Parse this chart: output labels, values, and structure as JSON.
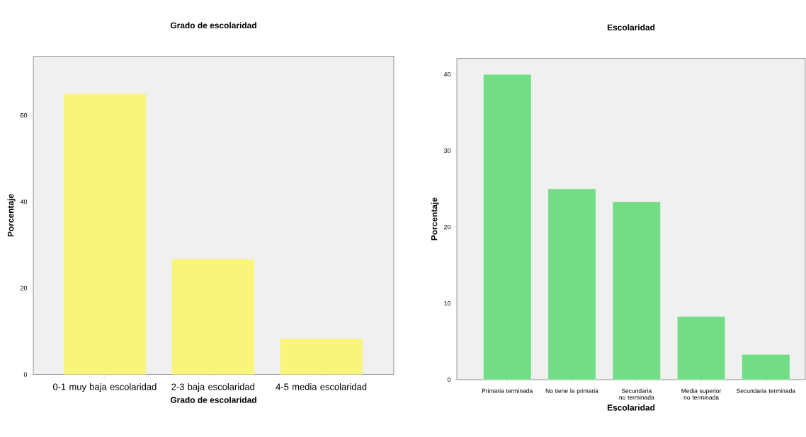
{
  "chart_data": [
    {
      "type": "bar",
      "title": "Grado de escolaridad",
      "xlabel": "Grado de escolaridad",
      "ylabel": "Porcentaje",
      "categories": [
        "0-1 muy baja escolaridad",
        "2-3 baja escolaridad",
        "4-5 media escolaridad"
      ],
      "values": [
        65.0,
        26.7,
        8.3
      ],
      "color": "#f8f57a",
      "ylim": [
        0,
        73.7
      ],
      "yticks": [
        0,
        20,
        40,
        60
      ]
    },
    {
      "type": "bar",
      "title": "Escolaridad",
      "xlabel": "Escolaridad",
      "ylabel": "Porcentaje",
      "categories": [
        "Primaria terminada",
        "No tiene la primaria",
        "Secundaria no terminada",
        "Media superior no terminada",
        "Secundaria terminada"
      ],
      "values": [
        40.0,
        25.0,
        23.3,
        8.3,
        3.3
      ],
      "color": "#72dd86",
      "ylim": [
        0,
        42.1
      ],
      "yticks": [
        0,
        10,
        20,
        30,
        40
      ]
    }
  ]
}
